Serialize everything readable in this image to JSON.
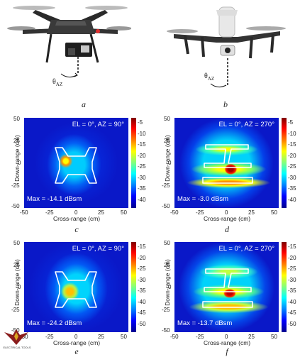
{
  "photos": {
    "a": {
      "label": "a",
      "theta": "θ",
      "theta_sub": "AZ"
    },
    "b": {
      "label": "b",
      "theta": "θ",
      "theta_sub": "AZ"
    }
  },
  "panels": {
    "c": {
      "label": "c",
      "title": "EL = 0°, AZ = 90°",
      "max": "Max = -14.1 dBsm",
      "cbar_ticks": [
        "-5",
        "-10",
        "-15",
        "-20",
        "-25",
        "-30",
        "-35",
        "-40"
      ]
    },
    "d": {
      "label": "d",
      "title": "EL = 0°, AZ = 270°",
      "max": "Max = -3.0 dBsm",
      "cbar_ticks": [
        "-5",
        "-10",
        "-15",
        "-20",
        "-25",
        "-30",
        "-35",
        "-40"
      ]
    },
    "e": {
      "label": "e",
      "title": "EL = 0°, AZ = 90°",
      "max": "Max = -24.2 dBsm",
      "cbar_ticks": [
        "-15",
        "-20",
        "-25",
        "-30",
        "-35",
        "-40",
        "-45",
        "-50"
      ]
    },
    "f": {
      "label": "f",
      "title": "EL = 0°, AZ = 270°",
      "max": "Max = -13.7 dBsm",
      "cbar_ticks": [
        "-15",
        "-20",
        "-25",
        "-30",
        "-35",
        "-40",
        "-45",
        "-50"
      ]
    }
  },
  "axes": {
    "xlabel": "Cross-range (cm)",
    "ylabel": "Down-range (cm)",
    "xticks": [
      "-50",
      "-25",
      "0",
      "25",
      "50"
    ],
    "yticks": [
      "50",
      "25",
      "0",
      "-25",
      "-50"
    ]
  },
  "logo_text": "ELECTRICAL TOOLS",
  "colors": {
    "jet_low": "#00008f",
    "jet_mid": "#7fff7f",
    "jet_high": "#800000"
  }
}
